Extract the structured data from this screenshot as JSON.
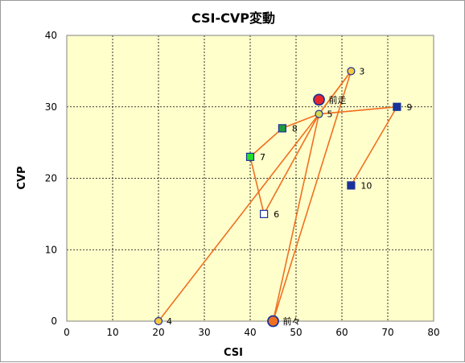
{
  "chart_data": {
    "type": "scatter",
    "title": "CSI-CVP変動",
    "xlabel": "CSI",
    "ylabel": "CVP",
    "xlim": [
      0,
      80
    ],
    "ylim": [
      0,
      40
    ],
    "xticks": [
      "0",
      "10",
      "20",
      "30",
      "40",
      "50",
      "60",
      "70",
      "80"
    ],
    "yticks": [
      "0",
      "10",
      "20",
      "30",
      "40"
    ],
    "grid": true,
    "colors": {
      "plot_background": "#ffffcc",
      "grid": "#000000",
      "line": "#f07020",
      "marker_border": "#1a3399"
    },
    "hub": {
      "x": 55,
      "y": 29
    },
    "points": [
      {
        "label": "3",
        "x": 62,
        "y": 35,
        "marker": "circle",
        "fill": "#f5c842"
      },
      {
        "label": "前走",
        "x": 55,
        "y": 31,
        "marker": "circle",
        "fill": "#e8262a",
        "size": "large"
      },
      {
        "label": "5",
        "x": 55,
        "y": 29,
        "marker": "circle",
        "fill": "#d4d94a"
      },
      {
        "label": "9",
        "x": 72,
        "y": 30,
        "marker": "square",
        "fill": "#1a3399"
      },
      {
        "label": "8",
        "x": 47,
        "y": 27,
        "marker": "square",
        "fill": "#1e9a3a"
      },
      {
        "label": "7",
        "x": 40,
        "y": 23,
        "marker": "square",
        "fill": "#22e02a"
      },
      {
        "label": "10",
        "x": 62,
        "y": 19,
        "marker": "square",
        "fill": "#1a3399"
      },
      {
        "label": "6",
        "x": 43,
        "y": 15,
        "marker": "square",
        "fill": "#ffffff"
      },
      {
        "label": "4",
        "x": 20,
        "y": 0,
        "marker": "circle",
        "fill": "#f5c842"
      },
      {
        "label": "前々",
        "x": 45,
        "y": 0,
        "marker": "circle",
        "fill": "#f07020",
        "size": "large"
      }
    ],
    "segments": [
      [
        [
          55,
          29
        ],
        [
          62,
          35
        ]
      ],
      [
        [
          55,
          29
        ],
        [
          47,
          27
        ]
      ],
      [
        [
          55,
          29
        ],
        [
          72,
          30
        ]
      ],
      [
        [
          55,
          29
        ],
        [
          43,
          15
        ]
      ],
      [
        [
          55,
          29
        ],
        [
          20,
          0
        ]
      ],
      [
        [
          55,
          29
        ],
        [
          45,
          0
        ]
      ],
      [
        [
          55,
          29
        ],
        [
          62,
          35
        ]
      ],
      [
        [
          47,
          27
        ],
        [
          40,
          23
        ]
      ],
      [
        [
          40,
          23
        ],
        [
          43,
          15
        ]
      ],
      [
        [
          72,
          30
        ],
        [
          62,
          19
        ]
      ],
      [
        [
          62,
          35
        ],
        [
          45,
          0
        ]
      ],
      [
        [
          55,
          29
        ],
        [
          72,
          30
        ]
      ]
    ]
  }
}
